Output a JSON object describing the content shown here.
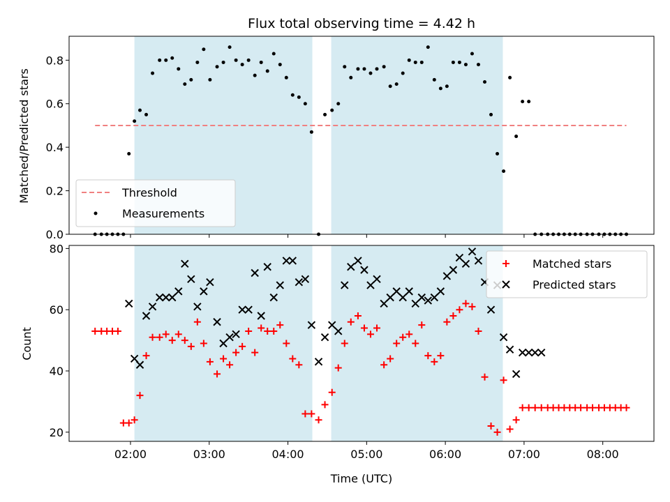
{
  "chart_data": [
    {
      "type": "scatter",
      "title": "Flux total observing time = 4.42 h",
      "xlabel": "",
      "ylabel": "Matched/Predicted stars",
      "xlim": [
        1.22,
        8.65
      ],
      "ylim": [
        0,
        0.91
      ],
      "x_unit": "hours UTC",
      "yticks": [
        0.0,
        0.2,
        0.4,
        0.6,
        0.8
      ],
      "legend": {
        "position": "lower-left",
        "entries": [
          "Threshold",
          "Measurements"
        ]
      },
      "threshold": {
        "name": "Threshold",
        "y": 0.5,
        "x": [
          1.55,
          8.3
        ],
        "color": "#f08080"
      },
      "shaded_intervals": [
        [
          2.05,
          4.31
        ],
        [
          4.55,
          6.73
        ]
      ],
      "series": [
        {
          "name": "Measurements",
          "color": "#000000",
          "x": [
            1.55,
            1.63,
            1.7,
            1.77,
            1.84,
            1.91,
            1.98,
            2.05,
            2.12,
            2.2,
            2.28,
            2.37,
            2.45,
            2.53,
            2.61,
            2.69,
            2.77,
            2.85,
            2.93,
            3.01,
            3.1,
            3.18,
            3.26,
            3.34,
            3.42,
            3.5,
            3.58,
            3.66,
            3.74,
            3.82,
            3.9,
            3.98,
            4.06,
            4.14,
            4.22,
            4.3,
            4.39,
            4.47,
            4.56,
            4.64,
            4.72,
            4.8,
            4.89,
            4.97,
            5.05,
            5.13,
            5.22,
            5.3,
            5.38,
            5.46,
            5.54,
            5.62,
            5.7,
            5.78,
            5.86,
            5.94,
            6.02,
            6.1,
            6.18,
            6.26,
            6.34,
            6.42,
            6.5,
            6.58,
            6.66,
            6.74,
            6.82,
            6.9,
            6.98,
            7.06,
            7.14,
            7.22,
            7.3,
            7.37,
            7.44,
            7.51,
            7.58,
            7.65,
            7.72,
            7.8,
            7.87,
            7.95,
            8.02,
            8.09,
            8.16,
            8.23,
            8.3
          ],
          "y": [
            0,
            0,
            0,
            0,
            0,
            0,
            0.37,
            0.52,
            0.57,
            0.55,
            0.74,
            0.8,
            0.8,
            0.81,
            0.76,
            0.69,
            0.71,
            0.79,
            0.85,
            0.71,
            0.77,
            0.79,
            0.86,
            0.8,
            0.78,
            0.8,
            0.73,
            0.79,
            0.75,
            0.83,
            0.78,
            0.72,
            0.64,
            0.63,
            0.6,
            0.47,
            0,
            0.55,
            0.57,
            0.6,
            0.77,
            0.72,
            0.76,
            0.76,
            0.74,
            0.76,
            0.77,
            0.68,
            0.69,
            0.74,
            0.8,
            0.79,
            0.79,
            0.86,
            0.71,
            0.67,
            0.68,
            0.79,
            0.79,
            0.78,
            0.83,
            0.78,
            0.7,
            0.55,
            0.37,
            0.29,
            0.72,
            0.45,
            0.61,
            0.61,
            0,
            0,
            0,
            0,
            0,
            0,
            0,
            0,
            0,
            0,
            0,
            0,
            0,
            0,
            0,
            0,
            0
          ]
        }
      ]
    },
    {
      "type": "scatter",
      "title": "",
      "xlabel": "Time (UTC)",
      "ylabel": "Count",
      "xlim": [
        1.22,
        8.65
      ],
      "ylim": [
        17,
        81
      ],
      "x_unit": "hours UTC",
      "xticks": [
        2,
        3,
        4,
        5,
        6,
        7,
        8
      ],
      "xtick_labels": [
        "02:00",
        "03:00",
        "04:00",
        "05:00",
        "06:00",
        "07:00",
        "08:00"
      ],
      "yticks": [
        20,
        40,
        60,
        80
      ],
      "legend": {
        "position": "top-right",
        "entries": [
          "Matched stars",
          "Predicted stars"
        ]
      },
      "shaded_intervals": [
        [
          2.05,
          4.31
        ],
        [
          4.55,
          6.73
        ]
      ],
      "series": [
        {
          "name": "Matched stars",
          "marker": "plus",
          "color": "#ff0000",
          "x": [
            1.55,
            1.63,
            1.7,
            1.77,
            1.84,
            1.91,
            1.98,
            2.05,
            2.12,
            2.2,
            2.28,
            2.37,
            2.45,
            2.53,
            2.61,
            2.69,
            2.77,
            2.85,
            2.93,
            3.01,
            3.1,
            3.18,
            3.26,
            3.34,
            3.42,
            3.5,
            3.58,
            3.66,
            3.74,
            3.82,
            3.9,
            3.98,
            4.06,
            4.14,
            4.22,
            4.3,
            4.39,
            4.47,
            4.56,
            4.64,
            4.72,
            4.8,
            4.89,
            4.97,
            5.05,
            5.13,
            5.22,
            5.3,
            5.38,
            5.46,
            5.54,
            5.62,
            5.7,
            5.78,
            5.86,
            5.94,
            6.02,
            6.1,
            6.18,
            6.26,
            6.34,
            6.42,
            6.5,
            6.58,
            6.66,
            6.74,
            6.82,
            6.9,
            6.98,
            7.06,
            7.14,
            7.22,
            7.3,
            7.37,
            7.44,
            7.51,
            7.58,
            7.65,
            7.72,
            7.8,
            7.87,
            7.95,
            8.02,
            8.09,
            8.16,
            8.23,
            8.3
          ],
          "y": [
            53,
            53,
            53,
            53,
            53,
            23,
            23,
            24,
            32,
            45,
            51,
            51,
            52,
            50,
            52,
            50,
            48,
            56,
            49,
            43,
            39,
            44,
            42,
            46,
            48,
            53,
            46,
            54,
            53,
            53,
            55,
            49,
            44,
            42,
            26,
            26,
            24,
            29,
            33,
            41,
            49,
            56,
            58,
            54,
            52,
            54,
            42,
            44,
            49,
            51,
            52,
            49,
            55,
            45,
            43,
            45,
            56,
            58,
            60,
            62,
            61,
            53,
            38,
            22,
            20,
            37,
            21,
            24,
            28,
            28,
            28,
            28,
            28,
            28,
            28,
            28,
            28,
            28,
            28,
            28,
            28,
            28,
            28,
            28,
            28,
            28,
            28
          ]
        },
        {
          "name": "Predicted stars",
          "marker": "x",
          "color": "#000000",
          "x": [
            1.98,
            2.05,
            2.12,
            2.2,
            2.28,
            2.37,
            2.45,
            2.53,
            2.61,
            2.69,
            2.77,
            2.85,
            2.93,
            3.01,
            3.1,
            3.18,
            3.26,
            3.34,
            3.42,
            3.5,
            3.58,
            3.66,
            3.74,
            3.82,
            3.9,
            3.98,
            4.06,
            4.14,
            4.22,
            4.3,
            4.39,
            4.47,
            4.56,
            4.64,
            4.72,
            4.8,
            4.89,
            4.97,
            5.05,
            5.13,
            5.22,
            5.3,
            5.38,
            5.46,
            5.54,
            5.62,
            5.7,
            5.78,
            5.86,
            5.94,
            6.02,
            6.1,
            6.18,
            6.26,
            6.34,
            6.42,
            6.5,
            6.58,
            6.66,
            6.74,
            6.82,
            6.9,
            6.98,
            7.06,
            7.14,
            7.22
          ],
          "y": [
            62,
            44,
            42,
            58,
            61,
            64,
            64,
            64,
            66,
            75,
            70,
            61,
            66,
            69,
            56,
            49,
            51,
            52,
            60,
            60,
            72,
            58,
            74,
            64,
            68,
            76,
            76,
            69,
            70,
            55,
            43,
            51,
            55,
            53,
            68,
            74,
            76,
            73,
            68,
            70,
            62,
            64,
            66,
            64,
            66,
            62,
            64,
            63,
            64,
            66,
            71,
            73,
            77,
            75,
            79,
            76,
            69,
            60,
            68,
            51,
            47,
            39,
            46,
            46,
            46,
            46
          ]
        }
      ]
    }
  ]
}
